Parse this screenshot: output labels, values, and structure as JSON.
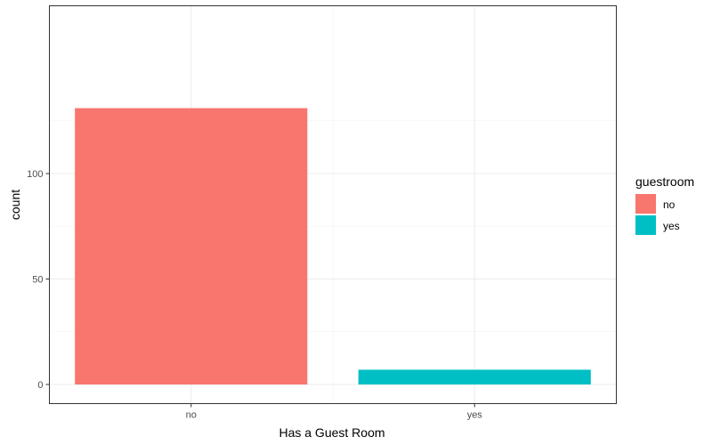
{
  "chart_data": {
    "type": "bar",
    "categories": [
      "no",
      "yes"
    ],
    "values": [
      131,
      7
    ],
    "colors": {
      "no": "#F8766D",
      "yes": "#00BFC4"
    },
    "title": "",
    "xlabel": "Has a Guest Room",
    "ylabel": "count",
    "ylim": [
      0,
      131
    ],
    "yticks": [
      0,
      50,
      100
    ],
    "grid": true,
    "legend": {
      "title": "guestroom",
      "position": "right",
      "items": [
        {
          "label": "no",
          "color": "#F8766D"
        },
        {
          "label": "yes",
          "color": "#00BFC4"
        }
      ]
    }
  }
}
